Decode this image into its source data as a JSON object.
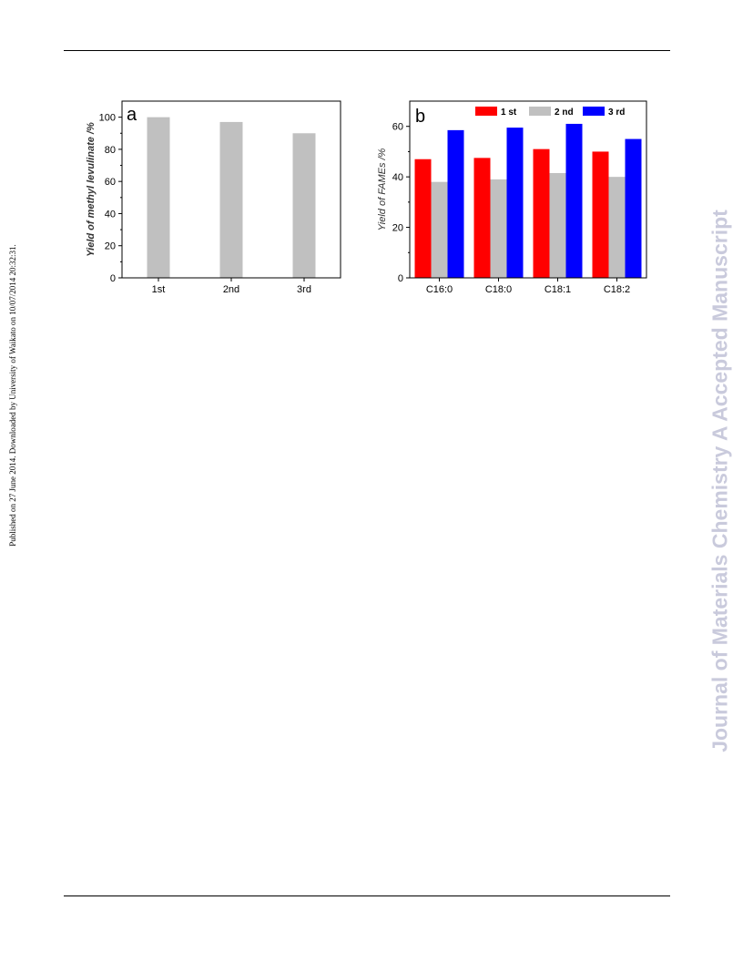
{
  "side_note": "Published on 27 June 2014. Downloaded by University of Waikato on 10/07/2014 20:32:31.",
  "watermark": {
    "text": "Journal of Materials Chemistry A Accepted Manuscript",
    "color": "#c9cadc"
  },
  "chart_data": [
    {
      "type": "bar",
      "panel_label": "a",
      "title": "",
      "xlabel": "",
      "ylabel": "Yield of methyl levulinate /%",
      "categories": [
        "1st",
        "2nd",
        "3rd"
      ],
      "values": [
        100,
        97,
        90
      ],
      "ylim": [
        0,
        110
      ],
      "yticks": [
        0,
        20,
        40,
        60,
        80,
        100
      ],
      "grid": false,
      "bar_color": "#c0c0c0"
    },
    {
      "type": "bar",
      "panel_label": "b",
      "title": "",
      "xlabel": "",
      "ylabel": "Yield of FAMEs /%",
      "categories": [
        "C16:0",
        "C18:0",
        "C18:1",
        "C18:2"
      ],
      "series": [
        {
          "name": "1 st",
          "values": [
            47,
            47.5,
            51,
            50
          ],
          "color": "#ff0000"
        },
        {
          "name": "2 nd",
          "values": [
            38,
            39,
            41.5,
            40
          ],
          "color": "#c0c0c0"
        },
        {
          "name": "3 rd",
          "values": [
            58.5,
            59.5,
            61,
            55
          ],
          "color": "#0000ff"
        }
      ],
      "ylim": [
        0,
        70
      ],
      "yticks": [
        0,
        20,
        40,
        60
      ],
      "grid": false,
      "legend": "top"
    }
  ]
}
